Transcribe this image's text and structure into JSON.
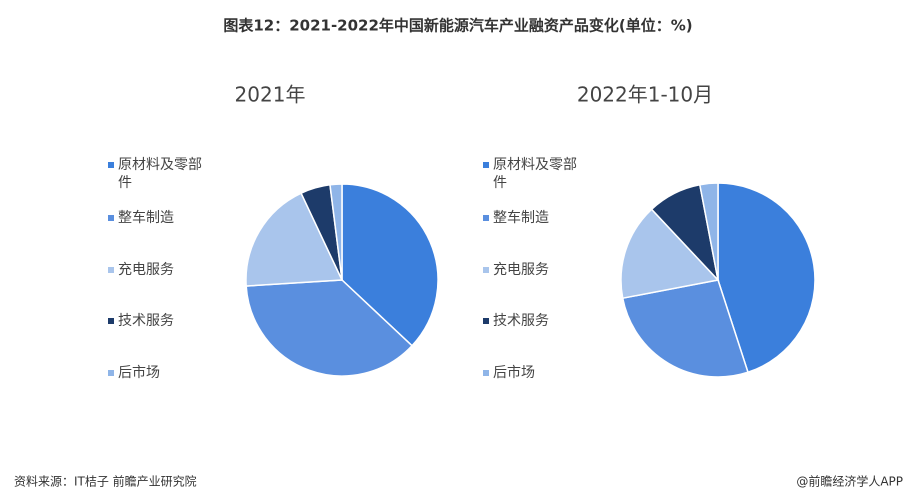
{
  "title": "图表12：2021-2022年中国新能源汽车产业融资产品变化(单位：%)",
  "source": "资料来源：IT桔子 前瞻产业研究院",
  "credit": "@前瞻经济学人APP",
  "chart_data": [
    {
      "type": "pie",
      "title": "2021年",
      "categories": [
        "原材料及零部件",
        "整车制造",
        "充电服务",
        "技术服务",
        "后市场"
      ],
      "colors": [
        "#3b7fdc",
        "#5a8fdf",
        "#a9c5ec",
        "#1d3b6a",
        "#8fb5e8"
      ],
      "values": [
        37,
        37,
        19,
        5,
        2
      ]
    },
    {
      "type": "pie",
      "title": "2022年1-10月",
      "categories": [
        "原材料及零部件",
        "整车制造",
        "充电服务",
        "技术服务",
        "后市场"
      ],
      "colors": [
        "#3b7fdc",
        "#5a8fdf",
        "#a9c5ec",
        "#1d3b6a",
        "#8fb5e8"
      ],
      "values": [
        45,
        27,
        16,
        9,
        3
      ]
    }
  ]
}
